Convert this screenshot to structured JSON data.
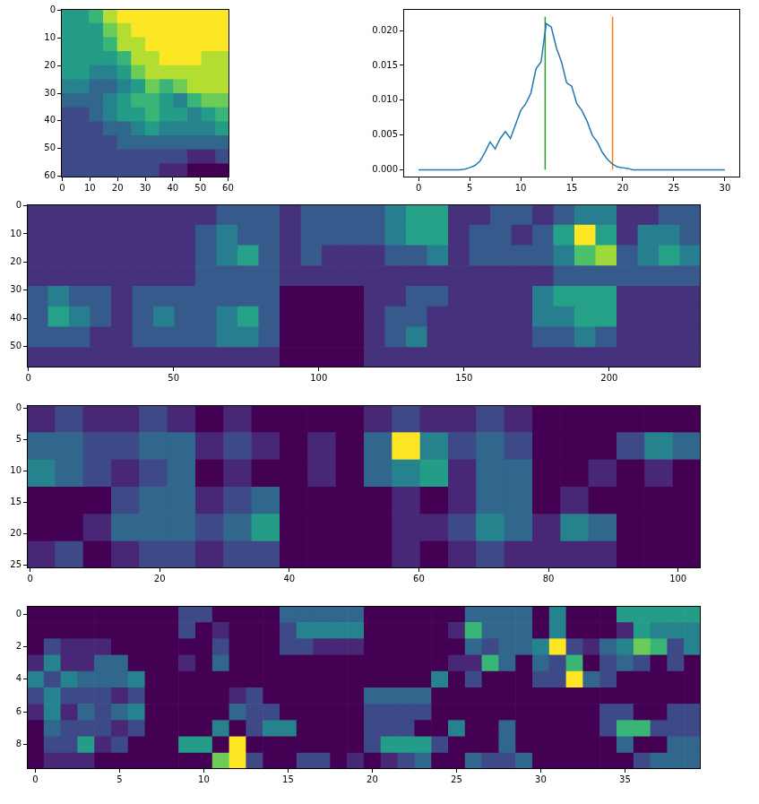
{
  "chart_data": [
    {
      "type": "heatmap",
      "color": "viridis",
      "grid": false,
      "xlim": [
        -0.5,
        60.5
      ],
      "ylim": [
        60.5,
        -0.5
      ],
      "xticks": [
        0,
        10,
        20,
        30,
        40,
        50,
        60
      ],
      "yticks": [
        0,
        10,
        20,
        30,
        40,
        50,
        60
      ],
      "cells": [
        [
          5,
          5,
          6,
          8,
          9,
          9,
          9,
          9,
          9,
          9,
          9,
          9
        ],
        [
          5,
          5,
          5,
          7,
          8,
          9,
          9,
          9,
          9,
          9,
          9,
          9
        ],
        [
          5,
          5,
          5,
          6,
          8,
          8,
          9,
          9,
          9,
          9,
          9,
          9
        ],
        [
          5,
          5,
          5,
          5,
          6,
          8,
          8,
          9,
          9,
          9,
          8,
          8
        ],
        [
          5,
          5,
          4,
          4,
          5,
          7,
          8,
          8,
          8,
          8,
          8,
          8
        ],
        [
          4,
          4,
          3,
          3,
          4,
          5,
          7,
          6,
          7,
          8,
          8,
          8
        ],
        [
          3,
          3,
          3,
          4,
          5,
          6,
          6,
          5,
          4,
          6,
          7,
          7
        ],
        [
          2,
          2,
          3,
          4,
          5,
          5,
          6,
          5,
          5,
          4,
          5,
          6
        ],
        [
          2,
          2,
          2,
          3,
          3,
          4,
          5,
          4,
          4,
          4,
          4,
          5
        ],
        [
          2,
          2,
          2,
          2,
          3,
          3,
          3,
          3,
          3,
          3,
          3,
          3
        ],
        [
          2,
          2,
          2,
          2,
          2,
          2,
          2,
          2,
          2,
          1,
          1,
          2
        ],
        [
          2,
          2,
          2,
          2,
          2,
          2,
          2,
          1,
          1,
          0,
          0,
          0
        ]
      ]
    },
    {
      "type": "line",
      "grid": false,
      "xlim": [
        -1.5,
        31.5
      ],
      "ylim": [
        -0.0011,
        0.0231
      ],
      "xticks": [
        0,
        5,
        10,
        15,
        20,
        25,
        30
      ],
      "yticks": [
        {
          "value": 0,
          "label": "0.000"
        },
        {
          "value": 0.005,
          "label": "0.005"
        },
        {
          "value": 0.01,
          "label": "0.010"
        },
        {
          "value": 0.015,
          "label": "0.015"
        },
        {
          "value": 0.02,
          "label": "0.020"
        }
      ],
      "x": [
        0,
        0.5,
        1,
        1.5,
        2,
        2.5,
        3,
        3.5,
        4,
        4.5,
        5,
        5.5,
        6,
        6.5,
        7,
        7.5,
        8,
        8.5,
        9,
        9.5,
        10,
        10.5,
        11,
        11.5,
        12,
        12.5,
        13,
        13.5,
        14,
        14.5,
        15,
        15.5,
        16,
        16.5,
        17,
        17.5,
        18,
        18.5,
        19,
        19.5,
        20,
        20.5,
        21,
        21.5,
        22,
        22.5,
        23,
        23.5,
        24,
        24.5,
        25,
        25.5,
        26,
        26.5,
        27,
        27.5,
        28,
        28.5,
        29,
        29.5,
        30
      ],
      "series": [
        {
          "color": "#1f77b4",
          "values": [
            0,
            0,
            0,
            0,
            0,
            0,
            0,
            0,
            0,
            0.0001,
            0.0003,
            0.0006,
            0.0012,
            0.0025,
            0.004,
            0.003,
            0.0045,
            0.0055,
            0.0045,
            0.0065,
            0.0085,
            0.0095,
            0.011,
            0.0145,
            0.0155,
            0.021,
            0.0205,
            0.0175,
            0.0155,
            0.0125,
            0.012,
            0.0095,
            0.0085,
            0.007,
            0.005,
            0.004,
            0.0025,
            0.0015,
            0.0008,
            0.0004,
            0.0003,
            0.0002,
            0,
            0,
            0,
            0,
            0,
            0,
            0,
            0,
            0,
            0,
            0,
            0,
            0,
            0,
            0,
            0,
            0,
            0,
            0
          ]
        },
        {
          "color": "#2ca02c",
          "x": [
            12.4,
            12.4
          ],
          "values": [
            0,
            0.022
          ]
        },
        {
          "color": "#ff7f0e",
          "x": [
            19,
            19
          ],
          "values": [
            0,
            0.022
          ]
        }
      ]
    },
    {
      "type": "heatmap",
      "color": "viridis",
      "grid": false,
      "xlim": [
        -0.5,
        231.5
      ],
      "ylim": [
        57.5,
        -0.5
      ],
      "xticks": [
        0,
        50,
        100,
        150,
        200
      ],
      "yticks": [
        0,
        10,
        20,
        30,
        40,
        50
      ],
      "cells": [
        [
          2,
          2,
          2,
          2,
          2,
          2,
          2,
          2,
          2,
          3,
          3,
          3,
          2,
          3,
          3,
          3,
          3,
          4,
          5,
          5,
          2,
          2,
          3,
          3,
          2,
          3,
          4,
          4,
          2,
          2,
          3,
          3
        ],
        [
          2,
          2,
          2,
          2,
          2,
          2,
          2,
          2,
          3,
          4,
          3,
          3,
          2,
          3,
          3,
          3,
          3,
          4,
          5,
          5,
          2,
          3,
          3,
          2,
          3,
          5,
          8,
          5,
          2,
          4,
          4,
          3
        ],
        [
          2,
          2,
          2,
          2,
          2,
          2,
          2,
          2,
          3,
          4,
          5,
          3,
          2,
          3,
          2,
          2,
          2,
          3,
          3,
          4,
          2,
          3,
          3,
          3,
          3,
          4,
          6,
          7,
          3,
          4,
          5,
          4
        ],
        [
          2,
          2,
          2,
          2,
          2,
          2,
          2,
          2,
          3,
          3,
          3,
          3,
          2,
          2,
          2,
          2,
          2,
          2,
          2,
          2,
          2,
          2,
          2,
          2,
          2,
          3,
          3,
          3,
          3,
          3,
          3,
          3
        ],
        [
          3,
          4,
          3,
          3,
          2,
          3,
          3,
          3,
          3,
          3,
          3,
          3,
          1,
          1,
          1,
          1,
          2,
          2,
          3,
          3,
          2,
          2,
          2,
          2,
          4,
          5,
          5,
          5,
          2,
          2,
          2,
          2
        ],
        [
          3,
          5,
          4,
          3,
          2,
          3,
          4,
          3,
          3,
          4,
          5,
          3,
          1,
          1,
          1,
          1,
          2,
          3,
          3,
          2,
          2,
          2,
          2,
          2,
          4,
          4,
          5,
          5,
          2,
          2,
          2,
          2
        ],
        [
          3,
          3,
          3,
          2,
          2,
          3,
          3,
          3,
          3,
          4,
          4,
          3,
          1,
          1,
          1,
          1,
          2,
          3,
          4,
          2,
          2,
          2,
          2,
          2,
          3,
          3,
          4,
          3,
          2,
          2,
          2,
          2
        ],
        [
          2,
          2,
          2,
          2,
          2,
          2,
          2,
          2,
          2,
          2,
          2,
          2,
          1,
          1,
          1,
          1,
          2,
          2,
          2,
          2,
          2,
          2,
          2,
          2,
          2,
          2,
          2,
          2,
          2,
          2,
          2,
          2
        ]
      ]
    },
    {
      "type": "heatmap",
      "color": "viridis",
      "grid": false,
      "xlim": [
        -0.5,
        103.5
      ],
      "ylim": [
        25.5,
        -0.5
      ],
      "xticks": [
        0,
        20,
        40,
        60,
        80,
        100
      ],
      "yticks": [
        0,
        5,
        10,
        15,
        20,
        25
      ],
      "cells": [
        [
          1,
          2,
          1,
          1,
          2,
          1,
          0,
          1,
          0,
          0,
          0,
          0,
          1,
          2,
          1,
          1,
          2,
          1,
          0,
          0,
          0,
          0,
          0,
          0
        ],
        [
          3,
          3,
          2,
          2,
          3,
          3,
          1,
          2,
          1,
          0,
          1,
          0,
          3,
          9,
          4,
          2,
          3,
          2,
          0,
          0,
          0,
          2,
          4,
          3
        ],
        [
          4,
          3,
          2,
          1,
          2,
          3,
          0,
          1,
          0,
          0,
          1,
          0,
          3,
          4,
          5,
          1,
          3,
          3,
          0,
          0,
          1,
          0,
          1,
          0
        ],
        [
          0,
          0,
          0,
          2,
          3,
          3,
          1,
          2,
          3,
          0,
          0,
          0,
          0,
          1,
          0,
          1,
          3,
          3,
          0,
          1,
          0,
          0,
          0,
          0
        ],
        [
          0,
          0,
          1,
          3,
          3,
          3,
          2,
          3,
          5,
          0,
          0,
          0,
          0,
          1,
          1,
          2,
          4,
          3,
          1,
          4,
          3,
          0,
          0,
          0
        ],
        [
          1,
          2,
          0,
          1,
          2,
          2,
          1,
          2,
          2,
          0,
          0,
          0,
          0,
          1,
          0,
          1,
          2,
          1,
          1,
          1,
          1,
          0,
          0,
          0
        ]
      ]
    },
    {
      "type": "heatmap",
      "color": "viridis",
      "grid": false,
      "xlim": [
        -0.5,
        39.5
      ],
      "ylim": [
        9.5,
        -0.5
      ],
      "xticks": [
        0,
        5,
        10,
        15,
        20,
        25,
        30,
        35
      ],
      "yticks": [
        0,
        2,
        4,
        6,
        8
      ],
      "cells": [
        [
          0,
          0,
          0,
          0,
          0,
          0,
          0,
          0,
          0,
          2,
          2,
          0,
          0,
          0,
          0,
          3,
          3,
          3,
          3,
          3,
          0,
          0,
          0,
          0,
          0,
          0,
          3,
          3,
          3,
          3,
          0,
          4,
          0,
          0,
          0,
          5,
          5,
          5,
          5,
          5
        ],
        [
          0,
          0,
          0,
          0,
          0,
          0,
          0,
          0,
          0,
          2,
          0,
          1,
          0,
          0,
          0,
          2,
          4,
          4,
          4,
          4,
          0,
          0,
          0,
          0,
          0,
          1,
          6,
          3,
          3,
          3,
          0,
          4,
          0,
          0,
          0,
          1,
          5,
          4,
          4,
          4
        ],
        [
          0,
          2,
          1,
          1,
          1,
          0,
          0,
          0,
          0,
          0,
          0,
          2,
          0,
          0,
          0,
          2,
          2,
          1,
          1,
          1,
          0,
          0,
          0,
          0,
          0,
          0,
          3,
          2,
          3,
          3,
          4,
          9,
          2,
          1,
          3,
          4,
          7,
          6,
          2,
          4
        ],
        [
          1,
          4,
          1,
          1,
          3,
          3,
          0,
          0,
          0,
          1,
          0,
          3,
          0,
          0,
          0,
          0,
          0,
          0,
          0,
          0,
          0,
          0,
          0,
          0,
          0,
          1,
          1,
          6,
          3,
          0,
          3,
          2,
          6,
          0,
          2,
          3,
          2,
          0,
          2,
          0
        ],
        [
          4,
          2,
          4,
          3,
          3,
          3,
          4,
          0,
          0,
          0,
          0,
          0,
          0,
          0,
          0,
          0,
          0,
          0,
          0,
          0,
          0,
          0,
          0,
          0,
          4,
          0,
          2,
          0,
          0,
          0,
          2,
          2,
          9,
          3,
          2,
          0,
          0,
          0,
          0,
          0
        ],
        [
          2,
          4,
          2,
          2,
          2,
          1,
          2,
          0,
          0,
          0,
          0,
          0,
          1,
          2,
          0,
          0,
          0,
          0,
          0,
          0,
          3,
          3,
          3,
          3,
          0,
          0,
          0,
          0,
          0,
          0,
          0,
          0,
          0,
          0,
          0,
          0,
          0,
          0,
          0,
          0
        ],
        [
          1,
          4,
          1,
          3,
          2,
          3,
          4,
          0,
          0,
          0,
          0,
          0,
          3,
          2,
          2,
          0,
          0,
          0,
          0,
          0,
          2,
          2,
          2,
          2,
          0,
          0,
          0,
          0,
          0,
          0,
          0,
          0,
          0,
          0,
          2,
          2,
          0,
          0,
          2,
          2
        ],
        [
          0,
          3,
          2,
          2,
          2,
          1,
          2,
          0,
          0,
          0,
          0,
          4,
          0,
          2,
          4,
          4,
          0,
          0,
          0,
          0,
          2,
          2,
          2,
          0,
          0,
          4,
          0,
          0,
          3,
          0,
          0,
          0,
          0,
          0,
          2,
          6,
          6,
          2,
          2,
          2
        ],
        [
          0,
          2,
          2,
          5,
          1,
          2,
          0,
          0,
          0,
          5,
          5,
          0,
          9,
          0,
          0,
          0,
          0,
          0,
          0,
          0,
          2,
          5,
          5,
          5,
          2,
          0,
          0,
          0,
          3,
          0,
          0,
          0,
          0,
          0,
          0,
          3,
          0,
          0,
          3,
          3
        ],
        [
          0,
          1,
          1,
          1,
          0,
          0,
          0,
          0,
          0,
          0,
          0,
          7,
          9,
          2,
          0,
          0,
          2,
          2,
          0,
          1,
          0,
          1,
          2,
          3,
          0,
          0,
          3,
          2,
          2,
          3,
          0,
          0,
          0,
          0,
          0,
          0,
          2,
          3,
          3,
          3
        ]
      ]
    }
  ]
}
